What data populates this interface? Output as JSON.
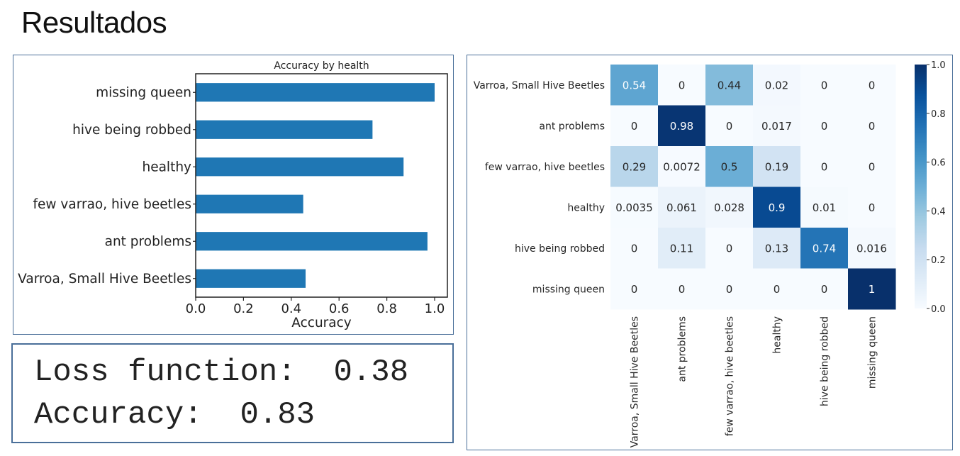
{
  "page": {
    "title": "Resultados"
  },
  "metrics": {
    "loss_label": "Loss function:",
    "loss_value": "0.38",
    "accuracy_label": "Accuracy:",
    "accuracy_value": "0.83"
  },
  "colors": {
    "bar": "#1f77b4",
    "panel_border": "#4a6f99",
    "cmap_low": "#f7fbff",
    "cmap_high": "#08306b"
  },
  "chart_data": [
    {
      "type": "bar",
      "orientation": "horizontal",
      "title": "Accuracy by health",
      "xlabel": "Accuracy",
      "ylabel": "",
      "categories": [
        "Varroa, Small Hive Beetles",
        "ant problems",
        "few varrao, hive beetles",
        "healthy",
        "hive being robbed",
        "missing queen"
      ],
      "values": [
        0.46,
        0.97,
        0.45,
        0.87,
        0.74,
        1.0
      ],
      "xlim": [
        0.0,
        1.0
      ],
      "xticks": [
        "0.0",
        "0.2",
        "0.4",
        "0.6",
        "0.8",
        "1.0"
      ],
      "grid": false
    },
    {
      "type": "heatmap",
      "title": "",
      "rows": [
        "Varroa, Small Hive Beetles",
        "ant problems",
        "few varrao, hive beetles",
        "healthy",
        "hive being robbed",
        "missing queen"
      ],
      "columns": [
        "Varroa, Small Hive Beetles",
        "ant problems",
        "few varrao, hive beetles",
        "healthy",
        "hive being robbed",
        "missing queen"
      ],
      "values": [
        [
          0.54,
          0,
          0.44,
          0.02,
          0,
          0
        ],
        [
          0,
          0.98,
          0,
          0.017,
          0,
          0
        ],
        [
          0.29,
          0.0072,
          0.5,
          0.19,
          0,
          0
        ],
        [
          0.0035,
          0.061,
          0.028,
          0.9,
          0.01,
          0
        ],
        [
          0,
          0.11,
          0,
          0.13,
          0.74,
          0.016
        ],
        [
          0,
          0,
          0,
          0,
          0,
          1
        ]
      ],
      "cell_labels": [
        [
          "0.54",
          "0",
          "0.44",
          "0.02",
          "0",
          "0"
        ],
        [
          "0",
          "0.98",
          "0",
          "0.017",
          "0",
          "0"
        ],
        [
          "0.29",
          "0.0072",
          "0.5",
          "0.19",
          "0",
          "0"
        ],
        [
          "0.0035",
          "0.061",
          "0.028",
          "0.9",
          "0.01",
          "0"
        ],
        [
          "0",
          "0.11",
          "0",
          "0.13",
          "0.74",
          "0.016"
        ],
        [
          "0",
          "0",
          "0",
          "0",
          "0",
          "1"
        ]
      ],
      "colorbar": {
        "range": [
          0.0,
          1.0
        ],
        "ticks": [
          "0.0",
          "0.2",
          "0.4",
          "0.6",
          "0.8",
          "1.0"
        ],
        "colormap": "Blues"
      }
    }
  ]
}
